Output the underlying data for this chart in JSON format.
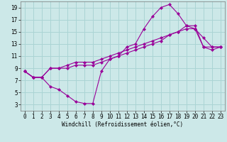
{
  "xlabel": "Windchill (Refroidissement éolien,°C)",
  "bg_color": "#cce8e8",
  "grid_color": "#aad4d4",
  "line_color": "#990099",
  "xlim_min": -0.5,
  "xlim_max": 23.5,
  "ylim_min": 2.0,
  "ylim_max": 20.0,
  "xticks": [
    0,
    1,
    2,
    3,
    4,
    5,
    6,
    7,
    8,
    9,
    10,
    11,
    12,
    13,
    14,
    15,
    16,
    17,
    18,
    19,
    20,
    21,
    22,
    23
  ],
  "yticks": [
    3,
    5,
    7,
    9,
    11,
    13,
    15,
    17,
    19
  ],
  "line1_x": [
    0,
    1,
    2,
    3,
    4,
    5,
    6,
    7,
    8,
    9,
    10,
    11,
    12,
    13,
    14,
    15,
    16,
    17,
    18,
    19,
    20,
    21,
    22,
    23
  ],
  "line1_y": [
    8.5,
    7.5,
    7.5,
    6.0,
    5.5,
    4.5,
    3.5,
    3.2,
    3.2,
    8.5,
    10.5,
    11.0,
    12.5,
    13.0,
    15.5,
    17.5,
    19.0,
    19.5,
    18.0,
    16.0,
    15.5,
    14.0,
    12.5,
    12.5
  ],
  "line2_x": [
    0,
    1,
    2,
    3,
    4,
    5,
    6,
    7,
    8,
    9,
    10,
    11,
    12,
    13,
    14,
    15,
    16,
    17,
    18,
    19,
    20,
    21,
    22,
    23
  ],
  "line2_y": [
    8.5,
    7.5,
    7.5,
    9.0,
    9.0,
    9.0,
    9.5,
    9.5,
    9.5,
    10.0,
    10.5,
    11.0,
    11.5,
    12.0,
    12.5,
    13.0,
    13.5,
    14.5,
    15.0,
    15.5,
    15.5,
    12.5,
    12.0,
    12.5
  ],
  "line3_x": [
    0,
    1,
    2,
    3,
    4,
    5,
    6,
    7,
    8,
    9,
    10,
    11,
    12,
    13,
    14,
    15,
    16,
    17,
    18,
    19,
    20,
    21,
    22,
    23
  ],
  "line3_y": [
    8.5,
    7.5,
    7.5,
    9.0,
    9.0,
    9.5,
    10.0,
    10.0,
    10.0,
    10.5,
    11.0,
    11.5,
    12.0,
    12.5,
    13.0,
    13.5,
    14.0,
    14.5,
    15.0,
    16.0,
    16.0,
    12.5,
    12.5,
    12.5
  ],
  "tick_fontsize": 5.5,
  "label_fontsize": 5.5,
  "linewidth": 0.8,
  "markersize": 2.2
}
